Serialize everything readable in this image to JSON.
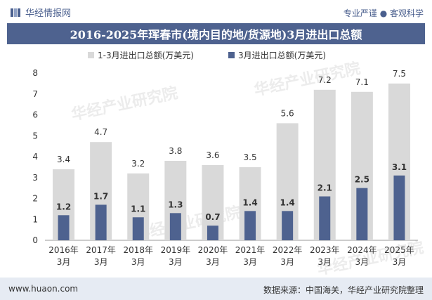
{
  "header": {
    "brand": "华经情报网",
    "tagline": "专业严谨 ● 客观科学"
  },
  "watermark": "华经产业研究院",
  "chart_data": {
    "type": "bar",
    "title": "2016-2025年珲春市(境内目的地/货源地)3月进出口总额",
    "categories": [
      "2016年\n3月",
      "2017年\n3月",
      "2018年\n3月",
      "2019年\n3月",
      "2020年\n3月",
      "2021年\n3月",
      "2022年\n3月",
      "2023年\n3月",
      "2024年\n3月",
      "2025年\n3月"
    ],
    "series": [
      {
        "name": "1-3月进出口总额(万美元)",
        "color": "#d9d9d9",
        "values": [
          3.4,
          4.7,
          3.2,
          3.8,
          3.6,
          3.5,
          5.6,
          7.2,
          7.1,
          7.5
        ]
      },
      {
        "name": "3月进出口总额(万美元)",
        "color": "#4e628f",
        "values": [
          1.2,
          1.7,
          1.1,
          1.3,
          0.7,
          1.4,
          1.4,
          2.1,
          2.5,
          3.1
        ]
      }
    ],
    "ylim": [
      0,
      8
    ],
    "yticks": [
      0,
      1,
      2,
      3,
      4,
      5,
      6,
      7,
      8
    ],
    "legend": "top-center",
    "grid": false
  },
  "footer": {
    "site": "www.huaon.com",
    "source": "数据来源：中国海关，华经产业研究院整理"
  }
}
